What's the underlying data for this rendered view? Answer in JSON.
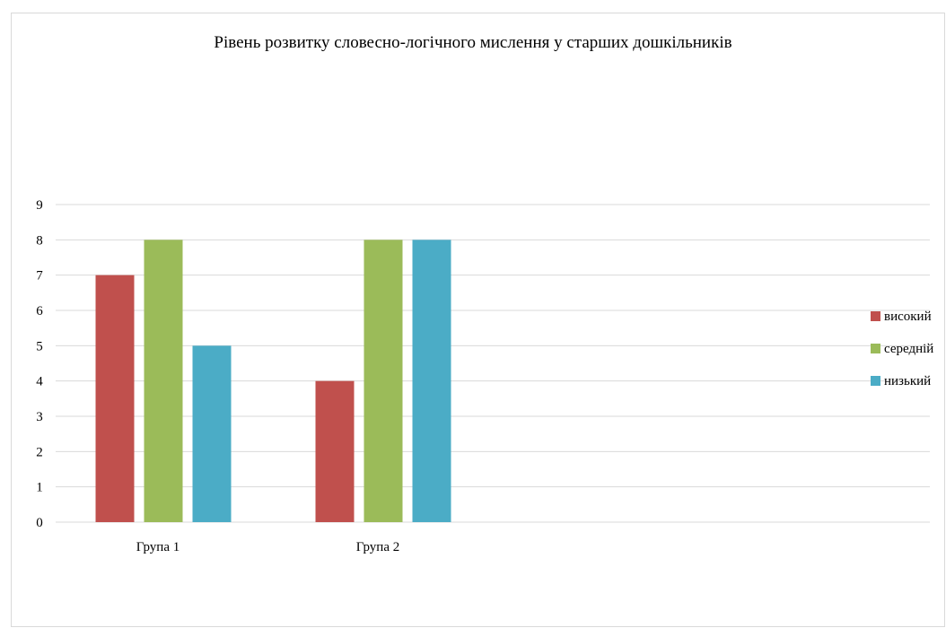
{
  "chart_data": {
    "type": "bar",
    "title": "Рівень розвитку словесно-логічного мислення у старших дошкільників",
    "categories": [
      "Група 1",
      "Група 2"
    ],
    "series": [
      {
        "name": "високий",
        "values": [
          7,
          4
        ],
        "color": "#c0504d"
      },
      {
        "name": "середній",
        "values": [
          8,
          8
        ],
        "color": "#9bbb59"
      },
      {
        "name": "низький",
        "values": [
          5,
          8
        ],
        "color": "#4bacc6"
      }
    ],
    "ylim": [
      0,
      9
    ],
    "yticks": [
      0,
      1,
      2,
      3,
      4,
      5,
      6,
      7,
      8,
      9
    ],
    "grid": true,
    "legend_position": "right"
  }
}
